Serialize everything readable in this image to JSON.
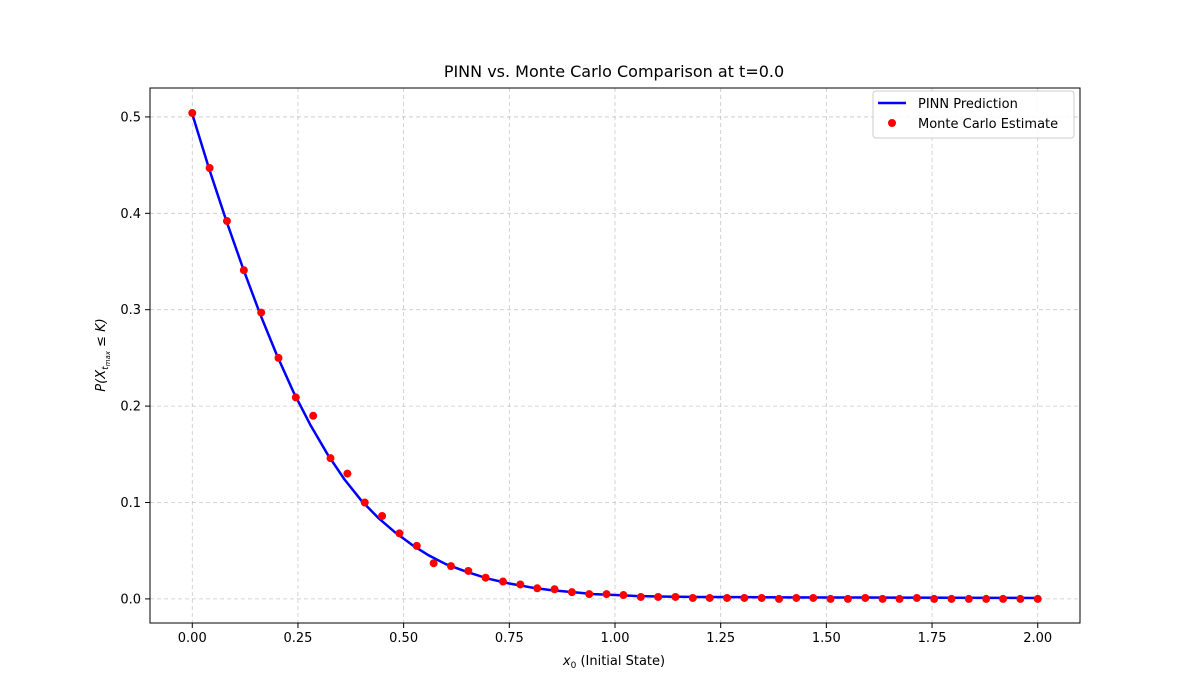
{
  "chart_data": {
    "type": "line",
    "title": "PINN vs. Monte Carlo Comparison at t=0.0",
    "xlabel": {
      "var": "x",
      "sub": "0",
      "rest": " (Initial State)"
    },
    "ylabel": {
      "pre": "P(X",
      "sub": "t",
      "subsub": "max",
      "post": " ≤ K)"
    },
    "xlim": [
      -0.1,
      2.1
    ],
    "ylim": [
      -0.025,
      0.53
    ],
    "xticks": [
      0.0,
      0.25,
      0.5,
      0.75,
      1.0,
      1.25,
      1.5,
      1.75,
      2.0
    ],
    "xtick_labels": [
      "0.00",
      "0.25",
      "0.50",
      "0.75",
      "1.00",
      "1.25",
      "1.50",
      "1.75",
      "2.00"
    ],
    "yticks": [
      0.0,
      0.1,
      0.2,
      0.3,
      0.4,
      0.5
    ],
    "ytick_labels": [
      "0.0",
      "0.1",
      "0.2",
      "0.3",
      "0.4",
      "0.5"
    ],
    "grid": true,
    "legend_position": "top-right",
    "series": [
      {
        "name": "PINN Prediction",
        "kind": "line",
        "color": "#0000ff",
        "x": [
          0.0,
          0.04,
          0.08,
          0.12,
          0.16,
          0.2,
          0.24,
          0.28,
          0.32,
          0.36,
          0.4,
          0.44,
          0.48,
          0.52,
          0.56,
          0.6,
          0.65,
          0.7,
          0.75,
          0.8,
          0.85,
          0.9,
          0.95,
          1.0,
          1.05,
          1.1,
          1.2,
          1.3,
          1.4,
          1.5,
          1.6,
          1.7,
          1.8,
          1.9,
          2.0
        ],
        "y": [
          0.503,
          0.446,
          0.393,
          0.343,
          0.296,
          0.253,
          0.214,
          0.18,
          0.15,
          0.124,
          0.102,
          0.084,
          0.069,
          0.056,
          0.045,
          0.036,
          0.028,
          0.021,
          0.016,
          0.012,
          0.009,
          0.007,
          0.005,
          0.004,
          0.003,
          0.0025,
          0.002,
          0.0018,
          0.0016,
          0.0015,
          0.0014,
          0.0013,
          0.0012,
          0.0011,
          0.001
        ]
      },
      {
        "name": "Monte Carlo Estimate",
        "kind": "scatter",
        "color": "#ff0000",
        "x": [
          0.0,
          0.041,
          0.082,
          0.122,
          0.163,
          0.204,
          0.245,
          0.286,
          0.327,
          0.367,
          0.408,
          0.449,
          0.49,
          0.531,
          0.571,
          0.612,
          0.653,
          0.694,
          0.735,
          0.776,
          0.816,
          0.857,
          0.898,
          0.939,
          0.98,
          1.02,
          1.061,
          1.102,
          1.143,
          1.184,
          1.224,
          1.265,
          1.306,
          1.347,
          1.388,
          1.429,
          1.469,
          1.51,
          1.551,
          1.592,
          1.633,
          1.673,
          1.714,
          1.755,
          1.796,
          1.837,
          1.878,
          1.918,
          1.959,
          2.0
        ],
        "y": [
          0.504,
          0.447,
          0.392,
          0.341,
          0.297,
          0.25,
          0.209,
          0.19,
          0.146,
          0.13,
          0.1,
          0.086,
          0.068,
          0.055,
          0.037,
          0.034,
          0.029,
          0.022,
          0.018,
          0.015,
          0.011,
          0.01,
          0.007,
          0.005,
          0.005,
          0.004,
          0.002,
          0.002,
          0.002,
          0.001,
          0.001,
          0.001,
          0.001,
          0.001,
          0.0,
          0.001,
          0.001,
          0.0,
          0.0,
          0.001,
          0.0,
          0.0,
          0.001,
          0.0,
          0.0,
          0.0,
          0.0,
          0.0,
          0.0,
          0.0
        ]
      }
    ]
  }
}
